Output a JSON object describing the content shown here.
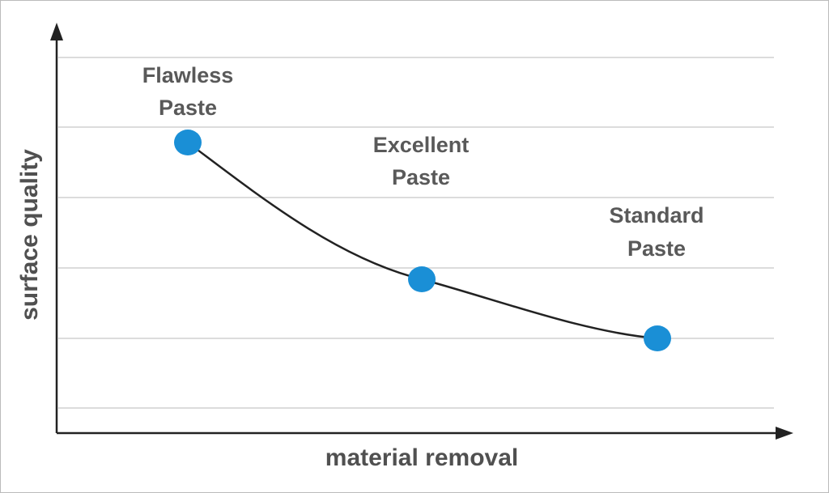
{
  "x_axis_label": "material removal",
  "y_axis_label": "surface quality",
  "points": [
    {
      "label_lines": [
        "Flawless",
        "Paste"
      ]
    },
    {
      "label_lines": [
        "Excellent",
        "Paste"
      ]
    },
    {
      "label_lines": [
        "Standard",
        "Paste"
      ]
    }
  ]
}
